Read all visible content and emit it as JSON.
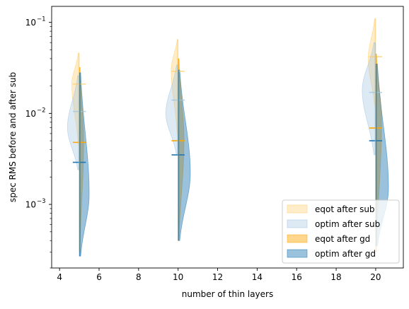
{
  "colors": {
    "eqot_after_sub": "#ffcc66",
    "optim_after_sub": "#9ec3e0",
    "eqot_after_gd": "#ffa500",
    "optim_after_gd": "#1f77b4"
  },
  "chart_data": {
    "type": "violin",
    "xlabel": "number of thin layers",
    "ylabel": "spec RMS before and after sub",
    "xscale": "linear",
    "yscale": "log",
    "xlim": [
      3.6,
      21.4
    ],
    "ylim": [
      0.0002,
      0.15
    ],
    "x_ticks": [
      4,
      6,
      8,
      10,
      12,
      14,
      16,
      18,
      20
    ],
    "x_tick_labels": [
      "4",
      "6",
      "8",
      "10",
      "12",
      "14",
      "16",
      "18",
      "20"
    ],
    "y_ticks": [
      0.001,
      0.01,
      0.1
    ],
    "y_tick_labels": [
      "10",
      "10",
      "10"
    ],
    "y_tick_exponents": [
      "−3",
      "−2",
      "−1"
    ],
    "grid": false,
    "legend_position": "lower-right",
    "legend": [
      "eqot after sub",
      "optim after sub",
      "eqot after gd",
      "optim after gd"
    ],
    "series": [
      {
        "name": "eqot after sub",
        "side": "left",
        "color_key": "eqot_after_sub",
        "positions": [
          5,
          10,
          20
        ],
        "medians": [
          0.021,
          0.029,
          0.042
        ],
        "distributions": [
          {
            "min": 0.0045,
            "max": 0.046,
            "peak": 0.021,
            "width": 0.38
          },
          {
            "min": 0.006,
            "max": 0.065,
            "peak": 0.03,
            "width": 0.35
          },
          {
            "min": 0.012,
            "max": 0.11,
            "peak": 0.04,
            "width": 0.38
          }
        ]
      },
      {
        "name": "optim after sub",
        "side": "left",
        "color_key": "optim_after_sub",
        "positions": [
          5,
          10,
          20
        ],
        "medians": [
          0.0105,
          0.014,
          0.017
        ],
        "distributions": [
          {
            "min": 0.0024,
            "max": 0.026,
            "peak": 0.007,
            "width": 0.6
          },
          {
            "min": 0.0035,
            "max": 0.034,
            "peak": 0.01,
            "width": 0.62
          },
          {
            "min": 0.0035,
            "max": 0.06,
            "peak": 0.018,
            "width": 0.68
          }
        ]
      },
      {
        "name": "eqot after gd",
        "side": "right",
        "color_key": "eqot_after_gd",
        "positions": [
          5,
          10,
          20
        ],
        "medians": [
          0.0048,
          0.005,
          0.0069
        ],
        "distributions": [
          {
            "min": 0.0003,
            "max": 0.032,
            "peak": 0.005,
            "width": 0.22
          },
          {
            "min": 0.0004,
            "max": 0.04,
            "peak": 0.005,
            "width": 0.3
          },
          {
            "min": 0.0003,
            "max": 0.045,
            "peak": 0.008,
            "width": 0.3
          }
        ]
      },
      {
        "name": "optim after gd",
        "side": "right",
        "color_key": "optim_after_gd",
        "positions": [
          5,
          10,
          20
        ],
        "medians": [
          0.0029,
          0.0035,
          0.005
        ],
        "distributions": [
          {
            "min": 0.00027,
            "max": 0.028,
            "peak": 0.0013,
            "width": 0.5
          },
          {
            "min": 0.0004,
            "max": 0.03,
            "peak": 0.0022,
            "width": 0.62
          },
          {
            "min": 0.00035,
            "max": 0.035,
            "peak": 0.0015,
            "width": 0.65
          }
        ]
      }
    ]
  }
}
